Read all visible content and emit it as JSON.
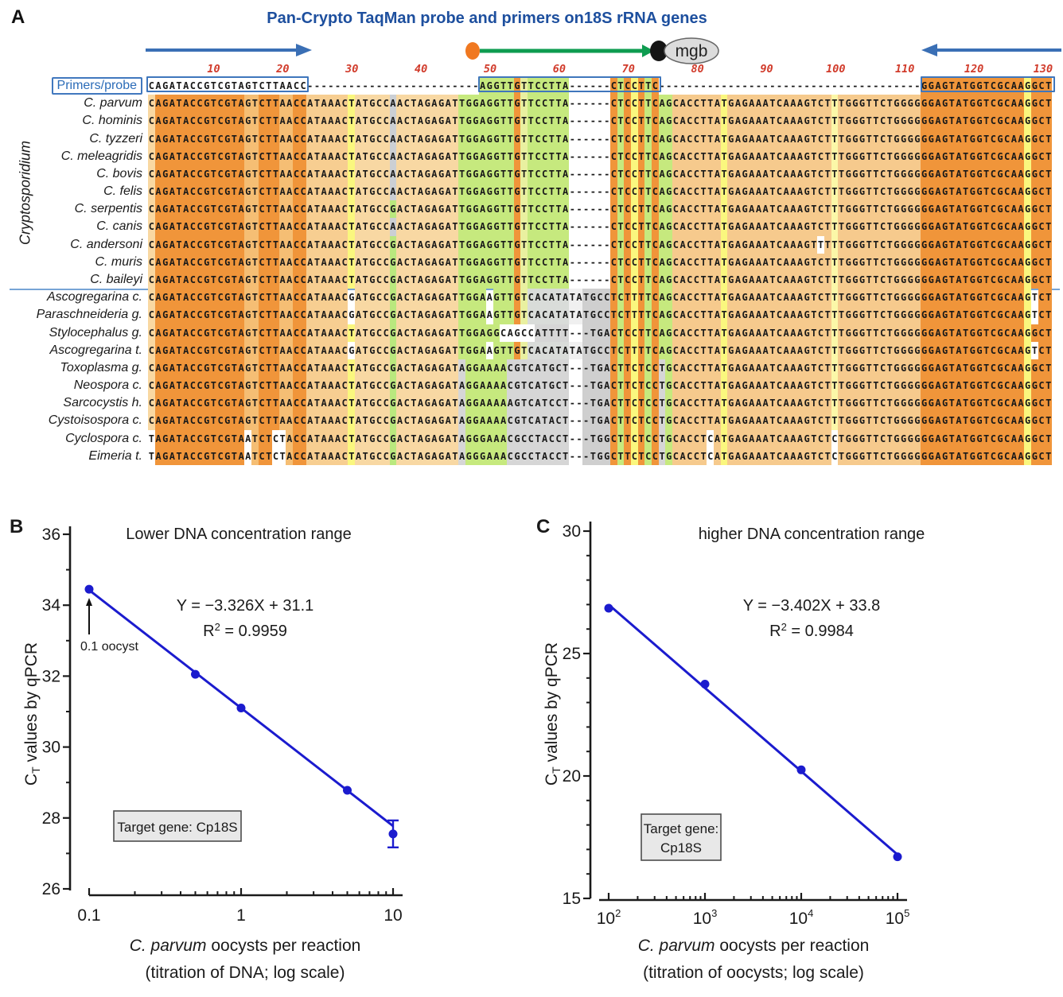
{
  "panelA": {
    "label": "A",
    "title": "Pan-Crypto TaqMan probe and primers on18S rRNA genes",
    "mgb_label": "mgb",
    "group_label": "Cryptosporidium",
    "ruler": [
      10,
      20,
      30,
      40,
      50,
      60,
      70,
      80,
      90,
      100,
      110,
      120,
      130
    ],
    "probe_row": {
      "label": "Primers/probe",
      "seq": "CAGATACCGTCGTAGTCTTAACC-------------------------AGGTTGTTCCTTA------CTCCTTC--------------------------------------GGAGTATGGTCGCAAGGCT",
      "boxes": [
        [
          1,
          23
        ],
        [
          49,
          74
        ],
        [
          113,
          131
        ]
      ],
      "colored_ranges": [
        [
          49,
          74
        ],
        [
          113,
          131
        ]
      ]
    },
    "column_colors": [
      [
        1,
        1,
        "#F9D8A2"
      ],
      [
        2,
        14,
        "#F0953A"
      ],
      [
        15,
        16,
        "#F5BE74"
      ],
      [
        17,
        19,
        "#F0953A"
      ],
      [
        20,
        21,
        "#F5BE74"
      ],
      [
        22,
        23,
        "#F0953A"
      ],
      [
        24,
        29,
        "#F7CE91"
      ],
      [
        30,
        30,
        "#FAF77E"
      ],
      [
        31,
        35,
        "#F8D8A3"
      ],
      [
        36,
        36,
        "#B9E87E"
      ],
      [
        37,
        45,
        "#F8D8A3"
      ],
      [
        46,
        53,
        "#C6E97E"
      ],
      [
        54,
        54,
        "#F0953A"
      ],
      [
        55,
        55,
        "#E9F0A0"
      ],
      [
        56,
        61,
        "#C6E97E"
      ],
      [
        62,
        67,
        "#FFFFFF"
      ],
      [
        68,
        68,
        "#F0953A"
      ],
      [
        69,
        69,
        "#C6E97E"
      ],
      [
        70,
        70,
        "#F0953A"
      ],
      [
        71,
        71,
        "#FAF77E"
      ],
      [
        72,
        72,
        "#F0953A"
      ],
      [
        73,
        73,
        "#C6E97E"
      ],
      [
        74,
        74,
        "#F0953A"
      ],
      [
        75,
        76,
        "#C6E97E"
      ],
      [
        77,
        83,
        "#F6CA8D"
      ],
      [
        84,
        84,
        "#FAF77E"
      ],
      [
        85,
        99,
        "#F6CA8D"
      ],
      [
        100,
        100,
        "#FBF7A8"
      ],
      [
        101,
        112,
        "#F6CA8D"
      ],
      [
        113,
        127,
        "#F0953A"
      ],
      [
        128,
        128,
        "#FAF77E"
      ],
      [
        129,
        131,
        "#F0953A"
      ]
    ],
    "rows": [
      {
        "name": "C. parvum",
        "seq": "CAGATACCGTCGTAGTCTTAACCATAAACTATGCCAACTAGAGATTGGAGGTTGTTCCTTA------CTCCTTCAGCACCTTATGAGAAATCAAAGTCTTTGGGTTCTGGGGGGAGTATGGTCGCAAGGCT",
        "overrides": [
          [
            36,
            36,
            "#CBCFD4"
          ]
        ]
      },
      {
        "name": "C. hominis",
        "seq": "CAGATACCGTCGTAGTCTTAACCATAAACTATGCCAACTAGAGATTGGAGGTTGTTCCTTA------CTCCTTCAGCACCTTATGAGAAATCAAAGTCTTTGGGTTCTGGGGGGAGTATGGTCGCAAGGCT",
        "overrides": [
          [
            36,
            36,
            "#CBCFD4"
          ]
        ]
      },
      {
        "name": "C. tyzzeri",
        "seq": "CAGATACCGTCGTAGTCTTAACCATAAACTATGCCAACTAGAGATTGGAGGTTGTTCCTTA------CTCCTTCAGCACCTTATGAGAAATCAAAGTCTTTGGGTTCTGGGGGGAGTATGGTCGCAAGGCT",
        "overrides": [
          [
            36,
            36,
            "#CBCFD4"
          ]
        ]
      },
      {
        "name": "C. meleagridis",
        "seq": "CAGATACCGTCGTAGTCTTAACCATAAACTATGCCAACTAGAGATTGGAGGTTGTTCCTTA------CTCCTTCAGCACCTTATGAGAAATCAAAGTCTTTGGGTTCTGGGGGGAGTATGGTCGCAAGGCT",
        "overrides": [
          [
            36,
            36,
            "#CBCFD4"
          ]
        ]
      },
      {
        "name": "C. bovis",
        "seq": "CAGATACCGTCGTAGTCTTAACCATAAACTATGCCAACTAGAGATTGGAGGTTGTTCCTTA------CTCCTTCAGCACCTTATGAGAAATCAAAGTCTTTGGGTTCTGGGGGGAGTATGGTCGCAAGGCT",
        "overrides": [
          [
            36,
            36,
            "#CBCFD4"
          ]
        ]
      },
      {
        "name": "C. felis",
        "seq": "CAGATACCGTCGTAGTCTTAACCATAAACTATGCCAACTAGAGATTGGAGGTTGTTCCTTA------CTCCTTCAGCACCTTATGAGAAATCAAAGTCTTTGGGTTCTGGGGGGAGTATGGTCGCAAGGCT",
        "overrides": [
          [
            36,
            36,
            "#CBCFD4"
          ]
        ]
      },
      {
        "name": "C. serpentis",
        "seq": "CAGATACCGTCGTAGTCTTAACCATAAACTATGCCGACTAGAGATTGGAGGTTGTTCCTTA------CTCCTTCAGCACCTTATGAGAAATCAAAGTCTTTGGGTTCTGGGGGGAGTATGGTCGCAAGGCT",
        "overrides": []
      },
      {
        "name": "C. canis",
        "seq": "CAGATACCGTCGTAGTCTTAACCATAAACTATGCCAACTAGAGATTGGAGGTTGTTCCTTA------CTCCTTCAGCACCTTATGAGAAATCAAAGTCTTTGGGTTCTGGGGGGAGTATGGTCGCAAGGCT",
        "overrides": [
          [
            36,
            36,
            "#CBCFD4"
          ]
        ]
      },
      {
        "name": "C. andersoni",
        "seq": "CAGATACCGTCGTAGTCTTAACCATAAACTATGCCGACTAGAGATTGGAGGTTGTTCCTTA------CTCCTTCAGCACCTTATGAGAAATCAAAGTTTTTGGGTTCTGGGGGGAGTATGGTCGCAAGGCT",
        "overrides": [
          [
            98,
            98,
            "#FFFFFF"
          ]
        ]
      },
      {
        "name": "C. muris",
        "seq": "CAGATACCGTCGTAGTCTTAACCATAAACTATGCCGACTAGAGATTGGAGGTTGTTCCTTA------CTCCTTCAGCACCTTATGAGAAATCAAAGTCTTTGGGTTCTGGGGGGAGTATGGTCGCAAGGCT",
        "overrides": []
      },
      {
        "name": "C. baileyi",
        "seq": "CAGATACCGTCGTAGTCTTAACCATAAACTATGCCGACTAGAGATTGGAGGTTGTTCCTTA------CTCCTTCAGCACCTTATGAGAAATCAAAGTCTTTGGGTTCTGGGGGGAGTATGGTCGCAAGGCT",
        "overrides": []
      },
      {
        "name": "Ascogregarina c.",
        "seq": "CAGATACCGTCGTAGTCTTAACCATAAACGATGCCGACTAGAGATTGGAAGTTGTCACATATATGCCTCTTTTCAGCACCTTATGAGAAATCAAAGTCTTTGGGTTCTGGGGGGAGTATGGTCGCAAGTCT",
        "overrides": [
          [
            30,
            30,
            "#FFFFFF"
          ],
          [
            50,
            50,
            "#FFFFFF"
          ],
          [
            56,
            61,
            "#D9DCD9"
          ],
          [
            62,
            63,
            "#F0F0F0"
          ],
          [
            64,
            67,
            "#CFCFCF"
          ],
          [
            129,
            129,
            "#FFFFFF"
          ]
        ]
      },
      {
        "name": "Paraschneideria g.",
        "seq": "CAGATACCGTCGTAGTCTTAACCATAAACGATGCCGACTAGAGATTGGAAGTTGTCACATATATGCCTCTTTTCAGCACCTTATGAGAAATCAAAGTCTTTGGGTTCTGGGGGGAGTATGGTCGCAAGTCT",
        "overrides": [
          [
            30,
            30,
            "#FFFFFF"
          ],
          [
            50,
            50,
            "#FFFFFF"
          ],
          [
            56,
            61,
            "#D9DCD9"
          ],
          [
            62,
            63,
            "#F0F0F0"
          ],
          [
            64,
            67,
            "#CFCFCF"
          ],
          [
            129,
            129,
            "#FFFFFF"
          ]
        ]
      },
      {
        "name": "Stylocephalus g.",
        "seq": "CAGATACCGTCGTAGTCTTAACCATAAACTATGCCGACTAGAGATTGGAGGCAGCCATTTT---TGACTCCTTCAGCACCTTATGAGAAATCAAAGTCTTTGGGTTCTGGGGGGAGTATGGTCGCAAGGCT",
        "overrides": [
          [
            52,
            56,
            "#FFFFFF"
          ],
          [
            57,
            61,
            "#D6D6D6"
          ],
          [
            62,
            63,
            "#FFFFFF"
          ],
          [
            64,
            67,
            "#CFCFCF"
          ]
        ]
      },
      {
        "name": "Ascogregarina t.",
        "seq": "CAGATACCGTCGTAGTCTTAACCATAAACGATGCCGACTAGAGATTGGAAGTTGTCACATATATGCCTCTTTTCAGCACCTTATGAGAAATCAAAGTCTTTGGGTTCTGGGGGGAGTATGGTCGCAAGTCT",
        "overrides": [
          [
            30,
            30,
            "#FFFFFF"
          ],
          [
            50,
            50,
            "#FFFFFF"
          ],
          [
            56,
            61,
            "#D9DCD9"
          ],
          [
            62,
            63,
            "#F0F0F0"
          ],
          [
            64,
            67,
            "#CFCFCF"
          ],
          [
            129,
            129,
            "#FFFFFF"
          ]
        ]
      },
      {
        "name": "Toxoplasma g.",
        "seq": "CAGATACCGTCGTAGTCTTAACCATAAACTATGCCGACTAGAGATAGGAAAACGTCATGCT---TGACTTCTCCTGCACCTTATGAGAAATCAAAGTCTTTGGGTTCTGGGGGGAGTATGGTCGCAAGGCT",
        "overrides": [
          [
            46,
            46,
            "#D6D6D6"
          ],
          [
            53,
            61,
            "#D6D6D6"
          ],
          [
            62,
            63,
            "#FFFFFF"
          ],
          [
            64,
            67,
            "#CFCFCF"
          ],
          [
            75,
            75,
            "#D6D6D6"
          ]
        ]
      },
      {
        "name": "Neospora c.",
        "seq": "CAGATACCGTCGTAGTCTTAACCATAAACTATGCCGACTAGAGATAGGAAAACGTCATGCT---TGACTTCTCCTGCACCTTATGAGAAATCAAAGTCTTTGGGTTCTGGGGGGAGTATGGTCGCAAGGCT",
        "overrides": [
          [
            46,
            46,
            "#D6D6D6"
          ],
          [
            53,
            61,
            "#D6D6D6"
          ],
          [
            62,
            63,
            "#FFFFFF"
          ],
          [
            64,
            67,
            "#CFCFCF"
          ],
          [
            75,
            75,
            "#D6D6D6"
          ]
        ]
      },
      {
        "name": "Sarcocystis h.",
        "seq": "CAGATACCGTCGTAGTCTTAACCATAAACTATGCCGACTAGAGATAGGAAAAAGTCATCCT---TGACTTCTCCTGCACCTTATGAGAAATCAAAGTCTTTGGGTTCTGGGGGGAGTATGGTCGCAAGGCT",
        "overrides": [
          [
            46,
            46,
            "#D6D6D6"
          ],
          [
            53,
            61,
            "#D6D6D6"
          ],
          [
            62,
            63,
            "#FFFFFF"
          ],
          [
            64,
            67,
            "#CFCFCF"
          ],
          [
            75,
            75,
            "#D6D6D6"
          ]
        ]
      },
      {
        "name": "Cystoisospora c.",
        "seq": "CAGATACCGTCGTAGTCTTAACCATAAACTATGCCGACTAGAGATAGGAAAACGTCATACT---TGACTTCTCCTGCACCTTATGAGAAATCAAAGTCTTTGGGTTCTGGGGGGAGTATGGTCGCAAGGCT",
        "overrides": [
          [
            46,
            46,
            "#D6D6D6"
          ],
          [
            53,
            61,
            "#D6D6D6"
          ],
          [
            62,
            63,
            "#FFFFFF"
          ],
          [
            64,
            67,
            "#CFCFCF"
          ],
          [
            75,
            75,
            "#D6D6D6"
          ]
        ]
      },
      {
        "name": "Cyclospora c.",
        "seq": "TAGATACCGTCGTAATCTCTACCATAAACTATGCCGACTAGAGATAGGGAAACGCCTACCT---TGGCTTCTCCTGCACCTCATGAGAAATCAAAGTCTCTGGGTTCTGGGGGGAGTATGGTCGCAAGGCT",
        "overrides": [
          [
            1,
            1,
            "#FFFFFF"
          ],
          [
            15,
            15,
            "#FFFFFF"
          ],
          [
            19,
            20,
            "#FFFFFF"
          ],
          [
            46,
            46,
            "#D6D6D6"
          ],
          [
            53,
            61,
            "#D6D6D6"
          ],
          [
            62,
            63,
            "#FFFFFF"
          ],
          [
            64,
            67,
            "#CFCFCF"
          ],
          [
            75,
            75,
            "#D6D6D6"
          ],
          [
            82,
            82,
            "#FFFFFF"
          ],
          [
            100,
            100,
            "#FFFFFF"
          ]
        ]
      },
      {
        "name": "Eimeria t.",
        "seq": "TAGATACCGTCGTAATCTCTACCATAAACTATGCCGACTAGAGATAGGGAAACGCCTACCT---TGGCTTCTCCTGCACCTCATGAGAAATCAAAGTCTCTGGGTTCTGGGGGGAGTATGGTCGCAAGGCT",
        "overrides": [
          [
            1,
            1,
            "#FFFFFF"
          ],
          [
            15,
            15,
            "#FFFFFF"
          ],
          [
            19,
            20,
            "#FFFFFF"
          ],
          [
            46,
            46,
            "#D6D6D6"
          ],
          [
            53,
            61,
            "#D6D6D6"
          ],
          [
            62,
            63,
            "#FFFFFF"
          ],
          [
            64,
            67,
            "#CFCFCF"
          ],
          [
            75,
            75,
            "#D6D6D6"
          ],
          [
            82,
            82,
            "#FFFFFF"
          ],
          [
            100,
            100,
            "#FFFFFF"
          ]
        ]
      }
    ],
    "colors": {
      "title_blue": "#1D4F9E",
      "box_blue": "#3F76BC",
      "ruler_red": "#D13B2B",
      "separator_blue": "#4A86C8",
      "arrow_blue": "#3A6FB5",
      "probe_line_green": "#0E9C50",
      "probe_dot_orange": "#F07820",
      "mgb_fill": "#DCDCDC",
      "dark_orange": "#F0953A",
      "tan": "#F8D8A3",
      "green": "#C6E97E",
      "yellow": "#FAF77E",
      "gray": "#CBCFD4"
    }
  },
  "chart_data": [
    {
      "type": "scatter",
      "panel_label": "B",
      "title": "Lower DNA concentration range",
      "equation": "Y = −3.326X + 31.1",
      "slope": -3.326,
      "intercept": 31.1,
      "r2": "0.9959",
      "xscale": "log",
      "x": [
        0.1,
        0.5,
        1,
        5,
        10
      ],
      "y": [
        34.45,
        32.05,
        31.1,
        28.78,
        27.55
      ],
      "y_error": [
        0,
        0,
        0,
        0,
        0.38
      ],
      "xlim": [
        0.1,
        10
      ],
      "ylim": [
        26,
        36
      ],
      "xtick_labels": [
        "0.1",
        "1",
        "10"
      ],
      "ytick_values": [
        36,
        34,
        32,
        30,
        28,
        26
      ],
      "ytick_minor": [
        35,
        33,
        31,
        29,
        27
      ],
      "annotation": "0.1 oocyst",
      "target_box_lines": [
        "Target gene: Cp18S"
      ],
      "xlabel_italic": "C. parvum",
      "xlabel_rest": " oocysts per reaction",
      "xlabel_line2": "(titration of DNA; log scale)",
      "ylabel_main": "C",
      "ylabel_sub": "T",
      "ylabel_rest": " values by qPCR",
      "point_color": "#1B1BCE"
    },
    {
      "type": "scatter",
      "panel_label": "C",
      "title": "higher DNA concentration range",
      "equation": "Y = −3.402X + 33.8",
      "slope": -3.402,
      "intercept": 33.8,
      "r2": "0.9984",
      "xscale": "log",
      "x": [
        100,
        1000,
        10000,
        100000
      ],
      "y": [
        26.85,
        23.75,
        20.25,
        16.7
      ],
      "y_error": [
        0,
        0,
        0,
        0
      ],
      "xlim": [
        100,
        100000
      ],
      "ylim": [
        15,
        30
      ],
      "xtick_exp": [
        [
          "10",
          "2"
        ],
        [
          "10",
          "3"
        ],
        [
          "10",
          "4"
        ],
        [
          "10",
          "5"
        ]
      ],
      "ytick_values": [
        30,
        25,
        20,
        15
      ],
      "ytick_minor": [
        16,
        17,
        18,
        19,
        21,
        22,
        23,
        24,
        26,
        27,
        28,
        29
      ],
      "annotation": null,
      "target_box_lines": [
        "Target gene:",
        "Cp18S"
      ],
      "xlabel_italic": "C. parvum",
      "xlabel_rest": " oocysts per reaction",
      "xlabel_line2": "(titration of oocysts; log scale)",
      "ylabel_main": "C",
      "ylabel_sub": "T",
      "ylabel_rest": " values by qPCR",
      "point_color": "#1B1BCE"
    }
  ]
}
